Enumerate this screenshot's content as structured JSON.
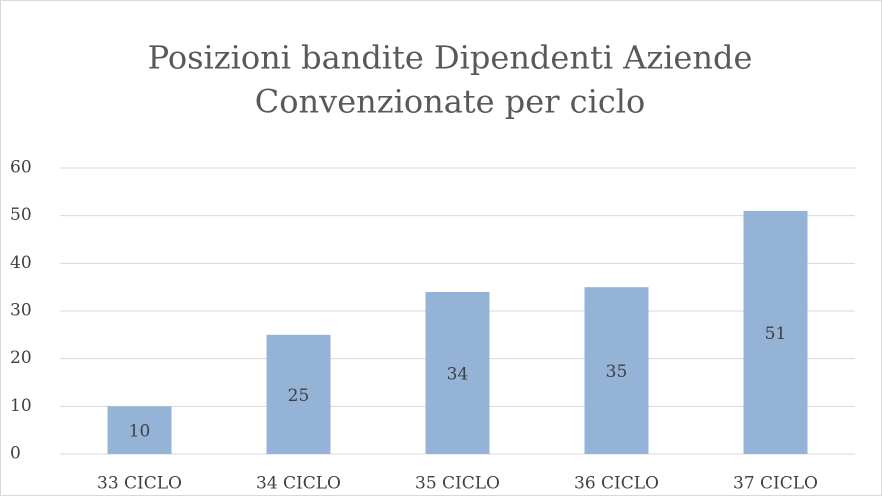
{
  "chart_data": {
    "type": "bar",
    "title": [
      "Posizioni bandite Dipendenti Aziende",
      "Convenzionate per ciclo"
    ],
    "categories": [
      "33 CICLO",
      "34 CICLO",
      "35 CICLO",
      "36 CICLO",
      "37 CICLO"
    ],
    "values": [
      10,
      25,
      34,
      35,
      51
    ],
    "color": "#95b3d7",
    "ylim": [
      0,
      60
    ],
    "yticks": [
      0,
      10,
      20,
      30,
      40,
      50,
      60
    ],
    "grid": true
  }
}
